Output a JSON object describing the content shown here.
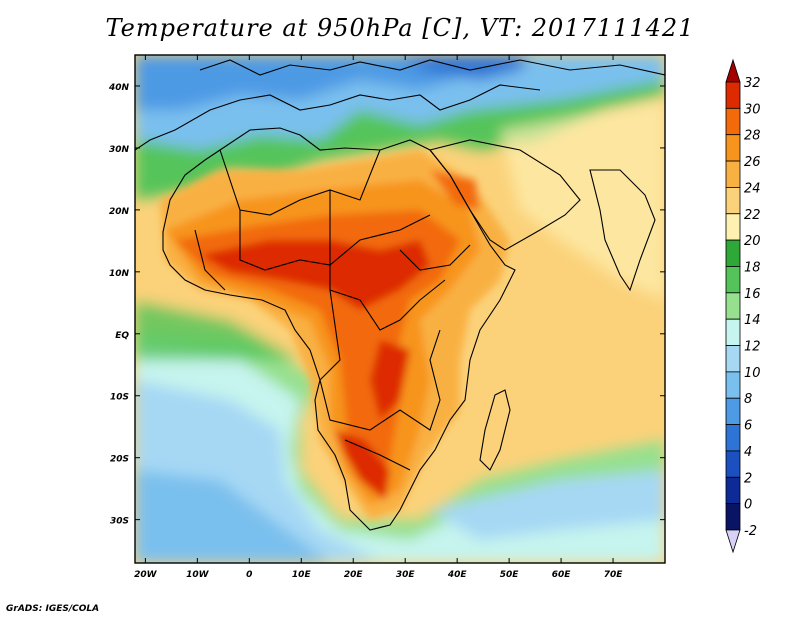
{
  "title": "Temperature at 950hPa [C], VT: 2017111421",
  "credit": "GrADS: IGES/COLA",
  "map": {
    "lon_range": [
      -22,
      80
    ],
    "lat_range": [
      -37,
      45
    ],
    "lat_ticks": [
      {
        "lat": 40,
        "label": "40N"
      },
      {
        "lat": 30,
        "label": "30N"
      },
      {
        "lat": 20,
        "label": "20N"
      },
      {
        "lat": 10,
        "label": "10N"
      },
      {
        "lat": 0,
        "label": "EQ"
      },
      {
        "lat": -10,
        "label": "10S"
      },
      {
        "lat": -20,
        "label": "20S"
      },
      {
        "lat": -30,
        "label": "30S"
      }
    ],
    "lon_ticks": [
      {
        "lon": -20,
        "label": "20W"
      },
      {
        "lon": -10,
        "label": "10W"
      },
      {
        "lon": 0,
        "label": "0"
      },
      {
        "lon": 10,
        "label": "10E"
      },
      {
        "lon": 20,
        "label": "20E"
      },
      {
        "lon": 30,
        "label": "30E"
      },
      {
        "lon": 40,
        "label": "40E"
      },
      {
        "lon": 50,
        "label": "50E"
      },
      {
        "lon": 60,
        "label": "60E"
      },
      {
        "lon": 70,
        "label": "70E"
      }
    ]
  },
  "colorbar": {
    "unit": "C",
    "levels": [
      {
        "label": "32",
        "color": "#a50000"
      },
      {
        "label": "30",
        "color": "#dd2a00"
      },
      {
        "label": "28",
        "color": "#f26a0a"
      },
      {
        "label": "26",
        "color": "#f7941d"
      },
      {
        "label": "24",
        "color": "#f9b042"
      },
      {
        "label": "22",
        "color": "#fbd27a"
      },
      {
        "label": "20",
        "color": "#fdf0b0"
      },
      {
        "label": "18",
        "color": "#2ea836"
      },
      {
        "label": "16",
        "color": "#54c45a"
      },
      {
        "label": "14",
        "color": "#96e08e"
      },
      {
        "label": "12",
        "color": "#c6f4ee"
      },
      {
        "label": "10",
        "color": "#a6d8f4"
      },
      {
        "label": "8",
        "color": "#7ac0ee"
      },
      {
        "label": "6",
        "color": "#4e9ae4"
      },
      {
        "label": "4",
        "color": "#2e74d6"
      },
      {
        "label": "2",
        "color": "#1c50c0"
      },
      {
        "label": "0",
        "color": "#0e2a96"
      },
      {
        "label": "-2",
        "color": "#0a1464"
      }
    ],
    "under_color": "#d8d2f6",
    "over_color": "#a50000"
  }
}
